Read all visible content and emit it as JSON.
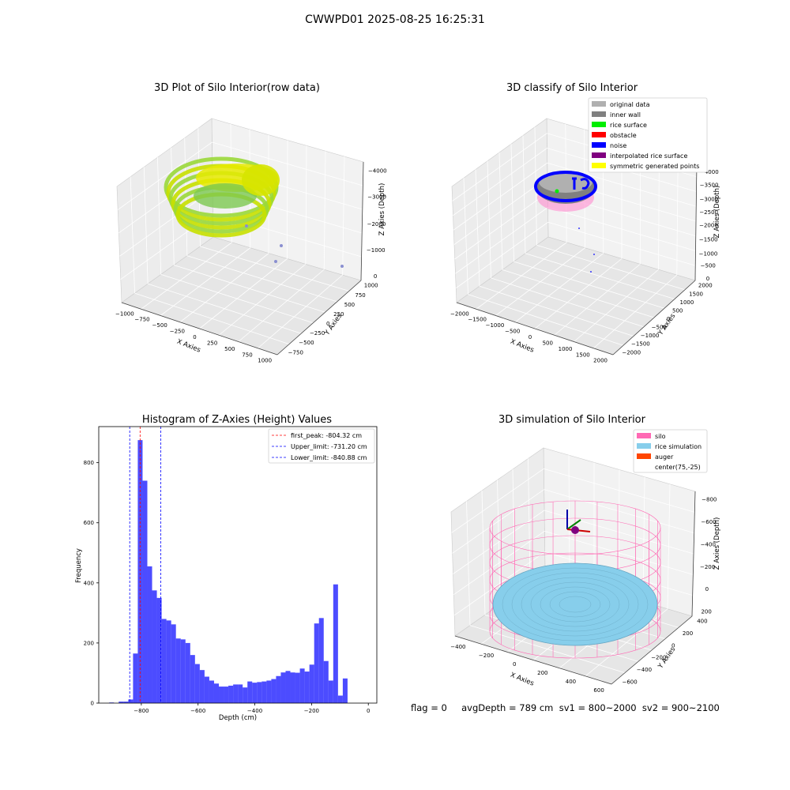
{
  "suptitle": "CWWPD01 2025-08-25 16:25:31",
  "plot1": {
    "title": "3D Plot of Silo Interior(row data)",
    "xlabel": "X Axies",
    "ylabel": "Y Axies",
    "zlabel": "Z Axies (Depth)",
    "xticks": [
      "−1000",
      "−750",
      "−500",
      "−250",
      "0",
      "250",
      "500",
      "750",
      "1000"
    ],
    "yticks": [
      "−750",
      "−500",
      "−250",
      "0",
      "250",
      "500",
      "750",
      "1000"
    ],
    "zticks": [
      "0",
      "−1000",
      "−2000",
      "−3000",
      "−4000"
    ]
  },
  "plot2": {
    "title": "3D classify of Silo Interior",
    "xlabel": "X Axies",
    "ylabel": "Y Axies",
    "zlabel": "Z Axies (Depth)",
    "xticks": [
      "−2000",
      "−1500",
      "−1000",
      "−500",
      "0",
      "500",
      "1000",
      "1500",
      "2000"
    ],
    "yticks": [
      "−2000",
      "−1500",
      "−1000",
      "−500",
      "0",
      "500",
      "1000",
      "1500",
      "2000"
    ],
    "zticks": [
      "0",
      "−500",
      "−1000",
      "−1500",
      "−2000",
      "−2500",
      "−3000",
      "−3500",
      "−4000"
    ],
    "legend": [
      {
        "label": "original data",
        "color": "#b0b0b0"
      },
      {
        "label": "inner wall",
        "color": "#808080"
      },
      {
        "label": "rice surface",
        "color": "#00ee00"
      },
      {
        "label": "obstacle",
        "color": "#ff0000"
      },
      {
        "label": "noise",
        "color": "#0000ff"
      },
      {
        "label": "interpolated rice surface",
        "color": "#800080"
      },
      {
        "label": "symmetric generated points",
        "color": "#ffff00"
      }
    ]
  },
  "plot4": {
    "title": "3D simulation of Silo Interior",
    "xlabel": "X Axies",
    "ylabel": "Y Axies",
    "zlabel": "Z Axies (Depth)",
    "xticks": [
      "−400",
      "−200",
      "0",
      "200",
      "400",
      "600"
    ],
    "yticks": [
      "−600",
      "−400",
      "−200",
      "0",
      "200",
      "400"
    ],
    "zticks": [
      "200",
      "0",
      "−200",
      "−400",
      "−600",
      "−800"
    ],
    "legend": [
      {
        "label": "silo",
        "color": "#ff69b4"
      },
      {
        "label": "rice simulation",
        "color": "#87ceeb"
      },
      {
        "label": "auger",
        "color": "#ff4500"
      },
      {
        "label": "center(75,-25)",
        "color": "#ffffff"
      }
    ]
  },
  "footer": "flag = 0     avgDepth = 789 cm  sv1 = 800~2000  sv2 = 900~2100",
  "chart_data": {
    "type": "bar",
    "title": "Histogram of Z-Axies (Height) Values",
    "xlabel": "Depth (cm)",
    "ylabel": "Frequency",
    "xlim": [
      -950,
      30
    ],
    "ylim": [
      0,
      920
    ],
    "xticks": [
      -800,
      -600,
      -400,
      -200,
      0
    ],
    "yticks": [
      0,
      200,
      400,
      600,
      800
    ],
    "bin_start": -930,
    "bin_width": 16.8,
    "series": [
      {
        "name": "Frequency",
        "color": "#0000ff",
        "alpha": 0.7,
        "values": [
          0,
          2,
          0,
          5,
          5,
          12,
          165,
          875,
          740,
          455,
          375,
          350,
          280,
          275,
          262,
          215,
          212,
          200,
          160,
          130,
          110,
          88,
          75,
          65,
          55,
          55,
          58,
          62,
          62,
          52,
          72,
          68,
          70,
          72,
          75,
          80,
          90,
          102,
          107,
          102,
          101,
          115,
          105,
          128,
          265,
          283,
          140,
          75,
          395,
          25,
          82
        ]
      }
    ],
    "lines": [
      {
        "label": "first_peak: -804.32 cm",
        "x": -804.32,
        "color": "#ff0000"
      },
      {
        "label": "Upper_limit: -731.20 cm",
        "x": -731.2,
        "color": "#0000ff"
      },
      {
        "label": "Lower_limit: -840.88 cm",
        "x": -840.88,
        "color": "#0000ff"
      }
    ],
    "legend_position": "upper right"
  }
}
